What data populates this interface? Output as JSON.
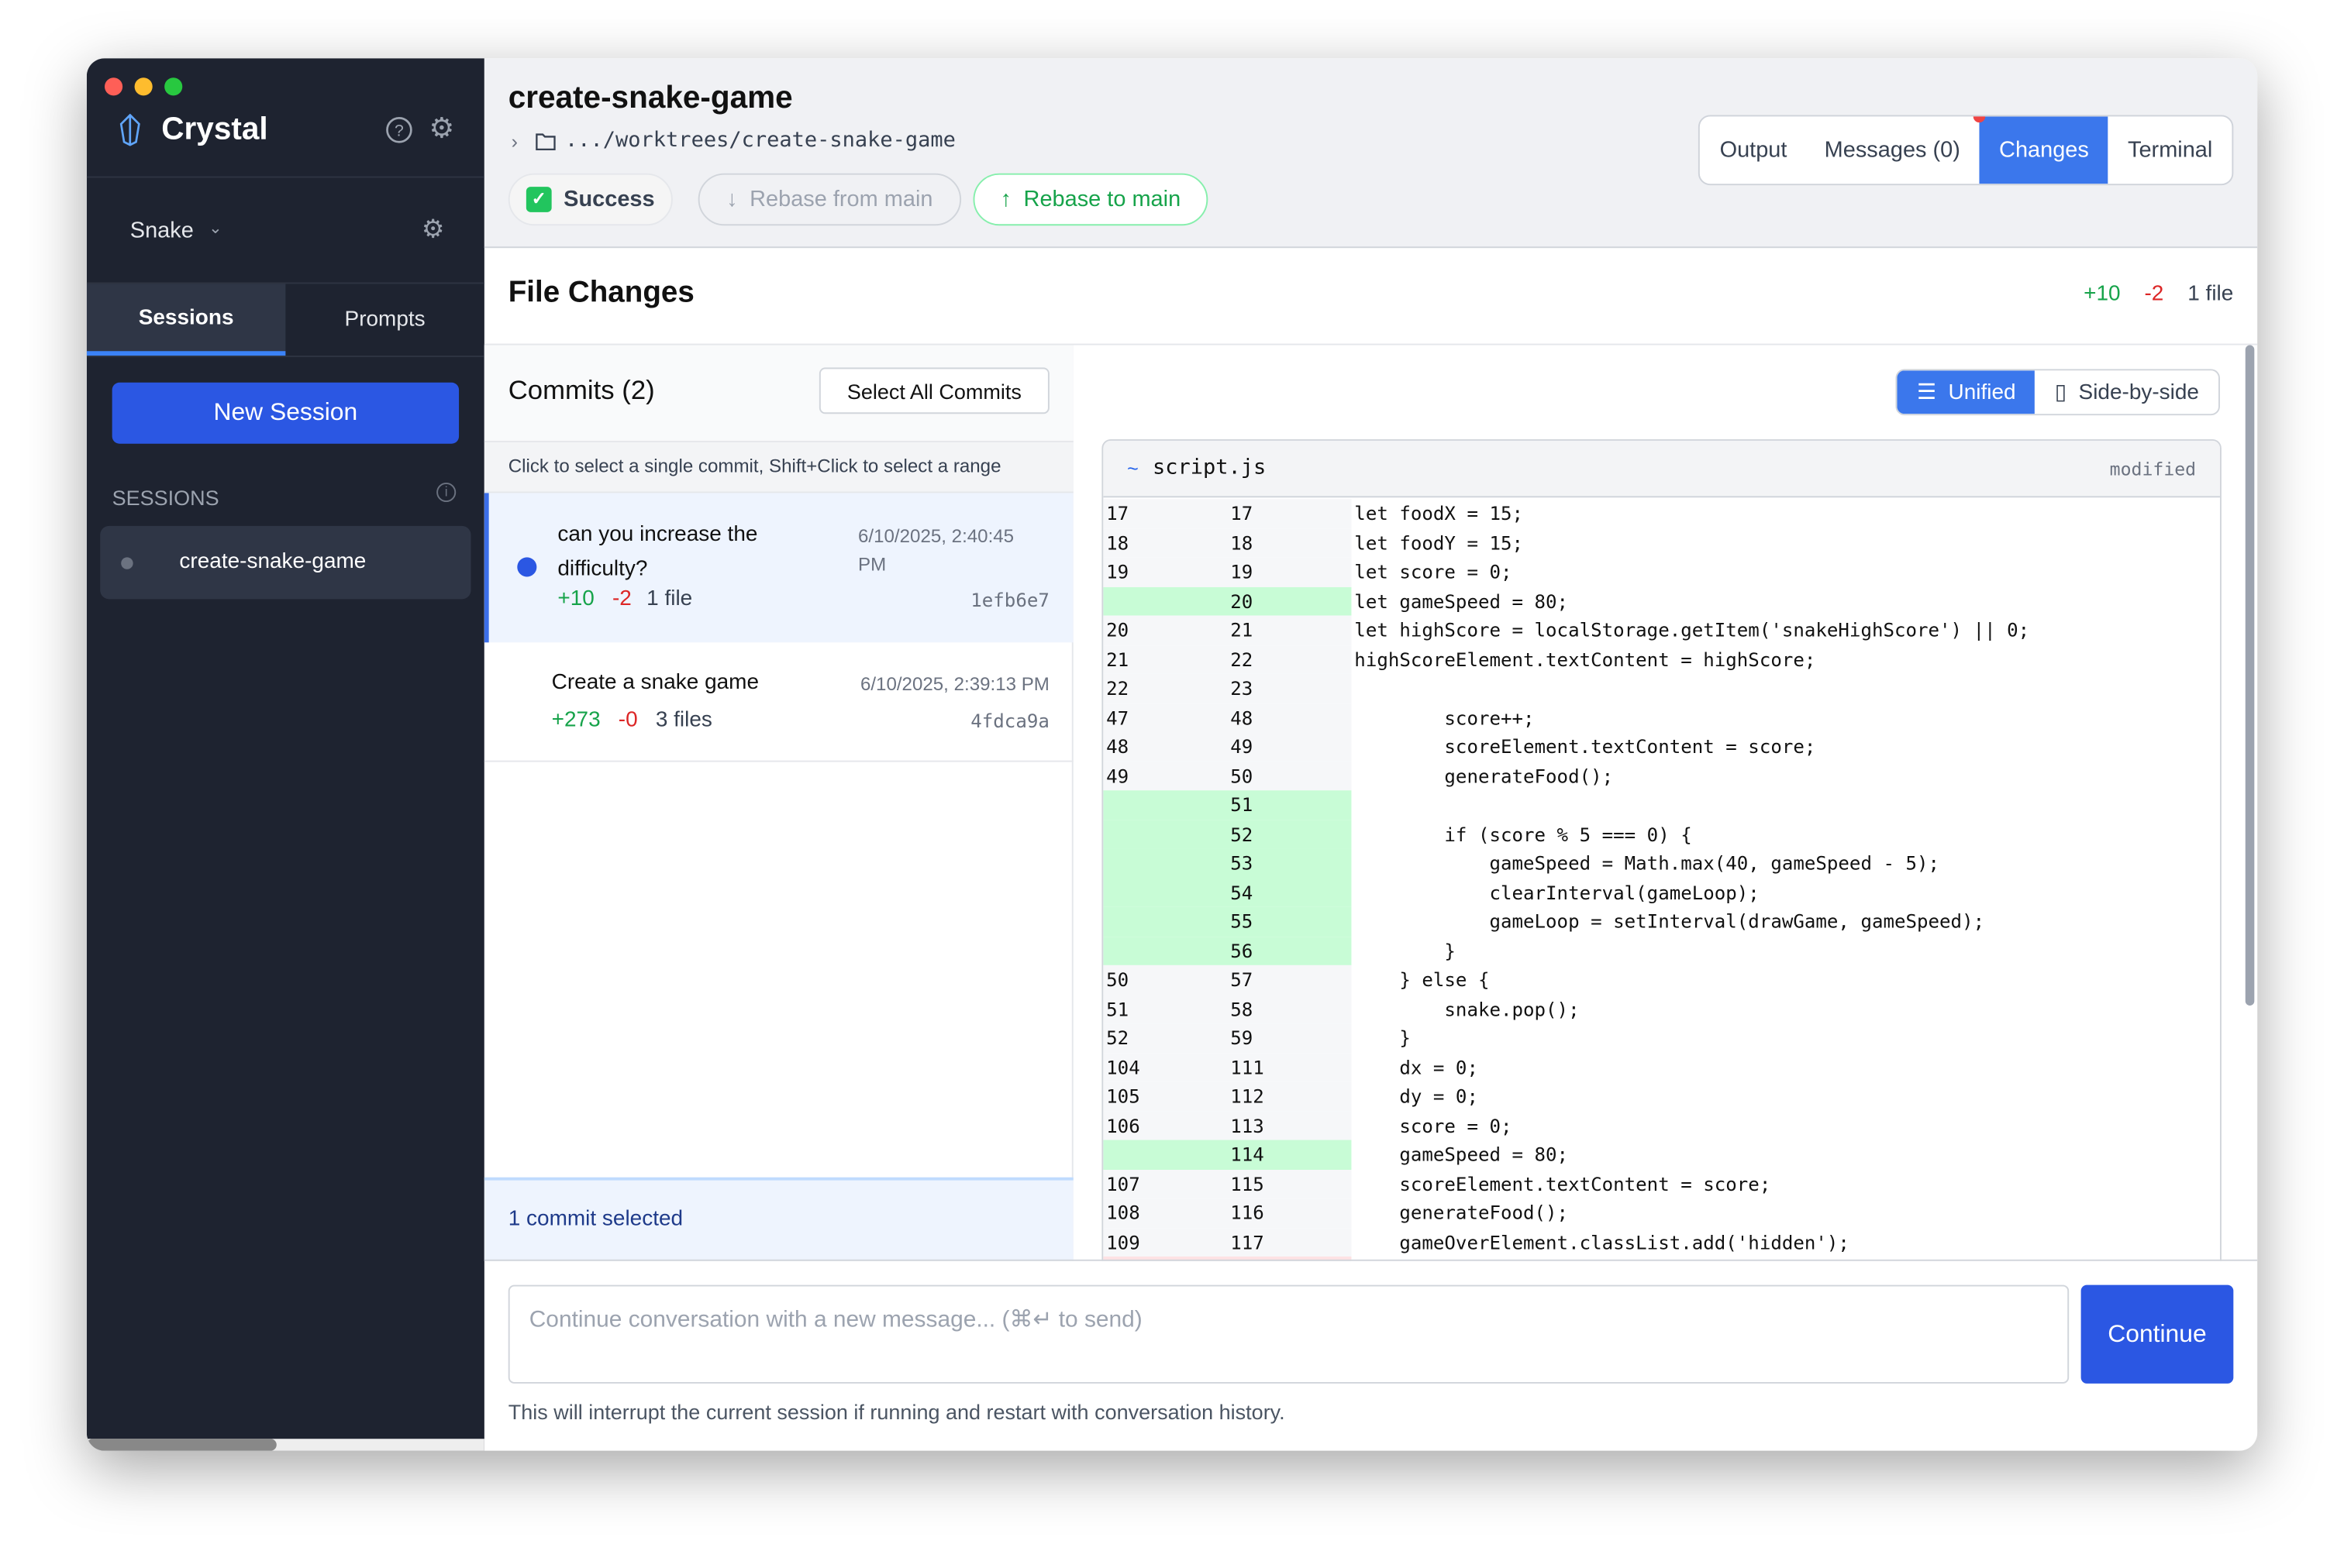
{
  "app": {
    "name": "Crystal"
  },
  "sidebar": {
    "project": "Snake",
    "tabs": [
      {
        "label": "Sessions",
        "active": true
      },
      {
        "label": "Prompts",
        "active": false
      }
    ],
    "new_session": "New Session",
    "sessions_heading": "SESSIONS",
    "sessions": [
      {
        "name": "create-snake-game",
        "active": true
      }
    ]
  },
  "header": {
    "title": "create-snake-game",
    "path": ".../worktrees/create-snake-game",
    "status": "Success",
    "rebase_from": "Rebase from main",
    "rebase_to": "Rebase to main",
    "tabs": [
      {
        "label": "Output"
      },
      {
        "label": "Messages (0)"
      },
      {
        "label": "Changes",
        "active": true
      },
      {
        "label": "Terminal"
      }
    ]
  },
  "file_changes": {
    "title": "File Changes",
    "additions": "+10",
    "deletions": "-2",
    "files": "1 file"
  },
  "commits": {
    "title": "Commits (2)",
    "select_all": "Select All Commits",
    "hint": "Click to select a single commit, Shift+Click to select a range",
    "items": [
      {
        "message": "can you increase the difficulty?",
        "date": "6/10/2025, 2:40:45 PM",
        "additions": "+10",
        "deletions": "-2",
        "files": "1 file",
        "hash": "1efb6e7",
        "selected": true
      },
      {
        "message": "Create a snake game",
        "date": "6/10/2025, 2:39:13 PM",
        "additions": "+273",
        "deletions": "-0",
        "files": "3 files",
        "hash": "4fdca9a",
        "selected": false
      }
    ],
    "footer": "1 commit selected"
  },
  "diff": {
    "view_modes": [
      {
        "label": "Unified",
        "active": true
      },
      {
        "label": "Side-by-side",
        "active": false
      }
    ],
    "file": "script.js",
    "file_status": "modified",
    "file_marker": "~",
    "lines": [
      {
        "old": "17",
        "new": "17",
        "code": "let foodX = 15;"
      },
      {
        "old": "18",
        "new": "18",
        "code": "let foodY = 15;"
      },
      {
        "old": "19",
        "new": "19",
        "code": "let score = 0;"
      },
      {
        "old": "",
        "new": "20",
        "code": "let gameSpeed = 80;",
        "type": "add"
      },
      {
        "old": "20",
        "new": "21",
        "code": "let highScore = localStorage.getItem('snakeHighScore') || 0;"
      },
      {
        "old": "21",
        "new": "22",
        "code": "highScoreElement.textContent = highScore;"
      },
      {
        "old": "22",
        "new": "23",
        "code": ""
      },
      {
        "old": "47",
        "new": "48",
        "code": "        score++;"
      },
      {
        "old": "48",
        "new": "49",
        "code": "        scoreElement.textContent = score;"
      },
      {
        "old": "49",
        "new": "50",
        "code": "        generateFood();"
      },
      {
        "old": "",
        "new": "51",
        "code": "",
        "type": "add"
      },
      {
        "old": "",
        "new": "52",
        "code": "        if (score % 5 === 0) {",
        "type": "add"
      },
      {
        "old": "",
        "new": "53",
        "code": "            gameSpeed = Math.max(40, gameSpeed - 5);",
        "type": "add"
      },
      {
        "old": "",
        "new": "54",
        "code": "            clearInterval(gameLoop);",
        "type": "add"
      },
      {
        "old": "",
        "new": "55",
        "code": "            gameLoop = setInterval(drawGame, gameSpeed);",
        "type": "add"
      },
      {
        "old": "",
        "new": "56",
        "code": "        }",
        "type": "add"
      },
      {
        "old": "50",
        "new": "57",
        "code": "    } else {"
      },
      {
        "old": "51",
        "new": "58",
        "code": "        snake.pop();"
      },
      {
        "old": "52",
        "new": "59",
        "code": "    }"
      },
      {
        "old": "104",
        "new": "111",
        "code": "    dx = 0;"
      },
      {
        "old": "105",
        "new": "112",
        "code": "    dy = 0;"
      },
      {
        "old": "106",
        "new": "113",
        "code": "    score = 0;"
      },
      {
        "old": "",
        "new": "114",
        "code": "    gameSpeed = 80;",
        "type": "add"
      },
      {
        "old": "107",
        "new": "115",
        "code": "    scoreElement.textContent = score;"
      },
      {
        "old": "108",
        "new": "116",
        "code": "    generateFood();"
      },
      {
        "old": "109",
        "new": "117",
        "code": "    gameOverElement.classList.add('hidden');"
      }
    ]
  },
  "composer": {
    "placeholder": "Continue conversation with a new message... (⌘↵ to send)",
    "continue": "Continue",
    "note": "This will interrupt the current session if running and restart with conversation history."
  },
  "colors": {
    "accent": "#2b57e3",
    "tab_active": "#3b77ec",
    "add": "#16a34a",
    "del": "#dc2626",
    "sidebar": "#1e2330",
    "added_bg": "#c8fcd6"
  }
}
